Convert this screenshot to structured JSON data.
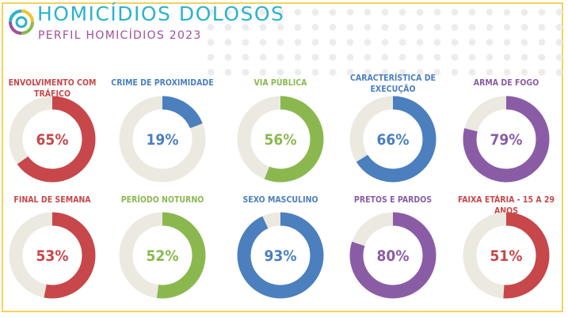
{
  "header": {
    "title": "HOMICÍDIOS DOLOSOS",
    "subtitle": "PERFIL HOMICÍDIOS 2023"
  },
  "colors": {
    "track": "#ece9e1",
    "red": "#c7474a",
    "blue": "#4b7fbe",
    "green": "#8ab84f",
    "purple": "#8a5ca6",
    "title": "#2ab3cf",
    "subtitle": "#a04f9d",
    "border": "#f2d35a"
  },
  "chart_data": {
    "type": "donut",
    "title": "PERFIL HOMICÍDIOS 2023",
    "items": [
      {
        "label": "ENVOLVIMENTO COM TRÁFICO",
        "value": 65,
        "display": "65%",
        "color": "red"
      },
      {
        "label": "CRIME DE PROXIMIDADE",
        "value": 19,
        "display": "19%",
        "color": "blue"
      },
      {
        "label": "VIA PÚBLICA",
        "value": 56,
        "display": "56%",
        "color": "green"
      },
      {
        "label": "CARACTERÍSTICA DE EXECUÇÃO",
        "value": 66,
        "display": "66%",
        "color": "blue"
      },
      {
        "label": "ARMA DE FOGO",
        "value": 79,
        "display": "79%",
        "color": "purple"
      },
      {
        "label": "FINAL DE SEMANA",
        "value": 53,
        "display": "53%",
        "color": "red"
      },
      {
        "label": "PERÍODO NOTURNO",
        "value": 52,
        "display": "52%",
        "color": "green"
      },
      {
        "label": "SEXO MASCULINO",
        "value": 93,
        "display": "93%",
        "color": "blue"
      },
      {
        "label": "PRETOS E PARDOS",
        "value": 80,
        "display": "80%",
        "color": "purple"
      },
      {
        "label": "FAIXA ETÁRIA - 15 A 29 ANOS",
        "value": 51,
        "display": "51%",
        "color": "red"
      }
    ]
  }
}
